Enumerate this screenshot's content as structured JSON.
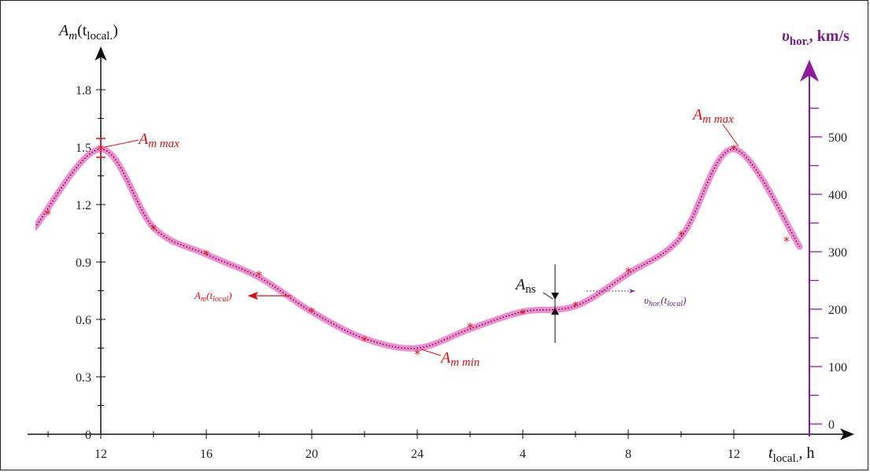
{
  "chart_data": {
    "type": "line",
    "title": "",
    "y_left": {
      "label_main": "A",
      "label_sub": "m",
      "label_rest": "(t",
      "label_sub2": "local.",
      "label_close": ")",
      "ticks": [
        0,
        0.3,
        0.6,
        0.9,
        1.2,
        1.5,
        1.8
      ],
      "tick_labels": [
        "0",
        "0.3",
        "0.6",
        "0.9",
        "1.2",
        "1.5",
        "1.8"
      ],
      "ylim": [
        0,
        2.0
      ]
    },
    "y_right": {
      "label_main": "υ",
      "label_sub": "hor.",
      "label_rest": ", km/s",
      "ticks": [
        0,
        100,
        200,
        300,
        400,
        500
      ],
      "tick_labels": [
        "0",
        "100",
        "200",
        "300",
        "400",
        "500"
      ],
      "ylim": [
        0,
        650
      ]
    },
    "x_axis": {
      "label_main": "t",
      "label_sub": "local.",
      "label_rest": ", h",
      "tick_labels": [
        "12",
        "16",
        "20",
        "24",
        "4",
        "8",
        "12"
      ],
      "tick_hours": [
        12,
        16,
        20,
        24,
        28,
        32,
        36
      ],
      "xlim": [
        9,
        36.3
      ]
    },
    "series": [
      {
        "name": "A_m(t_local)",
        "color": "#e01010",
        "marker": "*",
        "x": [
          10,
          12,
          14,
          16,
          18,
          20,
          22,
          24,
          26,
          28,
          30,
          32,
          34,
          36,
          38
        ],
        "y": [
          1.16,
          1.5,
          1.08,
          0.95,
          0.84,
          0.65,
          0.5,
          0.43,
          0.57,
          0.64,
          0.68,
          0.86,
          1.05,
          1.5,
          1.02
        ]
      },
      {
        "name": "υhor.(tlocal)",
        "color": "#f080c8",
        "style": "thick smooth line with dotted purple centre",
        "x": [
          9.5,
          12,
          14,
          16,
          18,
          20,
          22,
          24,
          26,
          28,
          30,
          32,
          34,
          36,
          38.5
        ],
        "y": [
          1.08,
          1.49,
          1.08,
          0.94,
          0.82,
          0.64,
          0.5,
          0.45,
          0.55,
          0.64,
          0.67,
          0.84,
          1.03,
          1.49,
          0.98
        ]
      }
    ],
    "annotations": {
      "amax_left": {
        "main": "A",
        "sub": "m max"
      },
      "amax_right": {
        "main": "A",
        "sub": "m max"
      },
      "amin": {
        "main": "A",
        "sub": "m min"
      },
      "ans": {
        "main": "A",
        "sub": "ns"
      },
      "am_label": {
        "main": "A",
        "sub": "m",
        "rest": "(t",
        "sub2": "local",
        "close": ")"
      },
      "vhor_label": {
        "main": "υ",
        "sub": "hor.",
        "rest": "(t",
        "sub2": "local",
        "close": ")"
      }
    },
    "grid": false
  }
}
